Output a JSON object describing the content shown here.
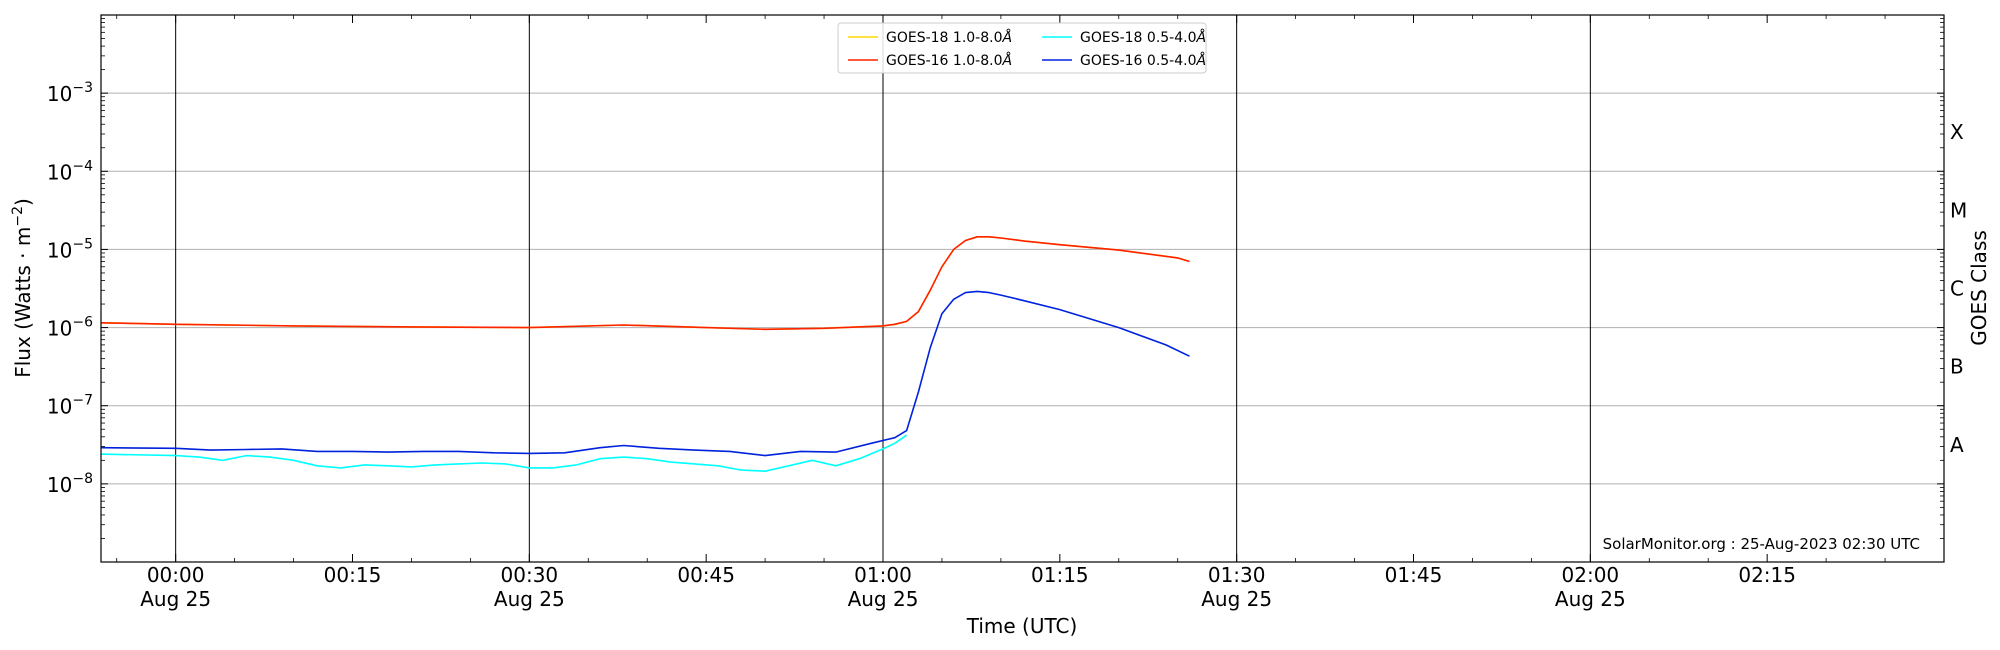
{
  "chart_data": {
    "type": "line",
    "title": "",
    "xlabel": "Time (UTC)",
    "ylabel": "Flux (Watts · m",
    "ylabel_exponent": "−2",
    "ylabel_close": ")",
    "y2label": "GOES Class",
    "credit": "SolarMonitor.org : 25-Aug-2023 02:30 UTC",
    "y_scale": "log",
    "ylim": [
      1e-09,
      0.01
    ],
    "xlim": [
      "2023-08-24T23:53:40",
      "2023-08-25T02:30:00"
    ],
    "grid_y": true,
    "legend_position": "top-center",
    "x_ticks": [
      {
        "time": "2023-08-25T00:00:00",
        "label": "00:00",
        "sublabel": "Aug 25",
        "vline": true
      },
      {
        "time": "2023-08-25T00:15:00",
        "label": "00:15",
        "sublabel": "",
        "vline": false
      },
      {
        "time": "2023-08-25T00:30:00",
        "label": "00:30",
        "sublabel": "Aug 25",
        "vline": true
      },
      {
        "time": "2023-08-25T00:45:00",
        "label": "00:45",
        "sublabel": "",
        "vline": false
      },
      {
        "time": "2023-08-25T01:00:00",
        "label": "01:00",
        "sublabel": "Aug 25",
        "vline": true
      },
      {
        "time": "2023-08-25T01:15:00",
        "label": "01:15",
        "sublabel": "",
        "vline": false
      },
      {
        "time": "2023-08-25T01:30:00",
        "label": "01:30",
        "sublabel": "Aug 25",
        "vline": true
      },
      {
        "time": "2023-08-25T01:45:00",
        "label": "01:45",
        "sublabel": "",
        "vline": false
      },
      {
        "time": "2023-08-25T02:00:00",
        "label": "02:00",
        "sublabel": "Aug 25",
        "vline": true
      },
      {
        "time": "2023-08-25T02:15:00",
        "label": "02:15",
        "sublabel": "",
        "vline": false
      }
    ],
    "y_ticks": [
      {
        "value": 1e-08,
        "base": "10",
        "exponent": "−8"
      },
      {
        "value": 1e-07,
        "base": "10",
        "exponent": "−7"
      },
      {
        "value": 1e-06,
        "base": "10",
        "exponent": "−6"
      },
      {
        "value": 1e-05,
        "base": "10",
        "exponent": "−5"
      },
      {
        "value": 0.0001,
        "base": "10",
        "exponent": "−4"
      },
      {
        "value": 0.001,
        "base": "10",
        "exponent": "−3"
      }
    ],
    "goes_classes": [
      {
        "label": "A",
        "value": 3.16e-08
      },
      {
        "label": "B",
        "value": 3.16e-07
      },
      {
        "label": "C",
        "value": 3.16e-06
      },
      {
        "label": "M",
        "value": 3.16e-05
      },
      {
        "label": "X",
        "value": 0.000316
      }
    ],
    "series": [
      {
        "name": "GOES-18 1.0-8.0",
        "name_suffix": "Å",
        "color": "#ffd700",
        "x": [
          "2023-08-24T23:53:40",
          "2023-08-25T00:00:00",
          "2023-08-25T00:10:00",
          "2023-08-25T00:20:00",
          "2023-08-25T00:30:00",
          "2023-08-25T00:38:00",
          "2023-08-25T00:45:00",
          "2023-08-25T00:50:00",
          "2023-08-25T00:55:00",
          "2023-08-25T01:00:00",
          "2023-08-25T01:01:00",
          "2023-08-25T01:02:00",
          "2023-08-25T01:03:00",
          "2023-08-25T01:04:00",
          "2023-08-25T01:05:00",
          "2023-08-25T01:06:00",
          "2023-08-25T01:07:00",
          "2023-08-25T01:08:00",
          "2023-08-25T01:09:00",
          "2023-08-25T01:10:00",
          "2023-08-25T01:12:00",
          "2023-08-25T01:15:00",
          "2023-08-25T01:20:00",
          "2023-08-25T01:25:00",
          "2023-08-25T01:26:00"
        ],
        "y": [
          1.15e-06,
          1.1e-06,
          1.05e-06,
          1.02e-06,
          1e-06,
          1.08e-06,
          1e-06,
          9.5e-07,
          9.8e-07,
          1.05e-06,
          1.1e-06,
          1.2e-06,
          1.6e-06,
          3e-06,
          6e-06,
          1e-05,
          1.3e-05,
          1.45e-05,
          1.45e-05,
          1.4e-05,
          1.28e-05,
          1.15e-05,
          9.8e-06,
          7.8e-06,
          7e-06
        ]
      },
      {
        "name": "GOES-16 1.0-8.0",
        "name_suffix": "Å",
        "color": "#ff2200",
        "x": [
          "2023-08-24T23:53:40",
          "2023-08-25T00:00:00",
          "2023-08-25T00:10:00",
          "2023-08-25T00:20:00",
          "2023-08-25T00:30:00",
          "2023-08-25T00:38:00",
          "2023-08-25T00:45:00",
          "2023-08-25T00:50:00",
          "2023-08-25T00:55:00",
          "2023-08-25T01:00:00",
          "2023-08-25T01:01:00",
          "2023-08-25T01:02:00",
          "2023-08-25T01:03:00",
          "2023-08-25T01:04:00",
          "2023-08-25T01:05:00",
          "2023-08-25T01:06:00",
          "2023-08-25T01:07:00",
          "2023-08-25T01:08:00",
          "2023-08-25T01:09:00",
          "2023-08-25T01:10:00",
          "2023-08-25T01:12:00",
          "2023-08-25T01:15:00",
          "2023-08-25T01:20:00",
          "2023-08-25T01:25:00",
          "2023-08-25T01:26:00"
        ],
        "y": [
          1.15e-06,
          1.1e-06,
          1.05e-06,
          1.02e-06,
          1e-06,
          1.08e-06,
          1e-06,
          9.5e-07,
          9.8e-07,
          1.05e-06,
          1.1e-06,
          1.2e-06,
          1.6e-06,
          3e-06,
          6e-06,
          1e-05,
          1.3e-05,
          1.45e-05,
          1.45e-05,
          1.4e-05,
          1.28e-05,
          1.15e-05,
          9.8e-06,
          7.8e-06,
          7e-06
        ]
      },
      {
        "name": "GOES-18 0.5-4.0",
        "name_suffix": "Å",
        "color": "#00ffff",
        "x": [
          "2023-08-24T23:53:40",
          "2023-08-25T00:00:00",
          "2023-08-25T00:02:00",
          "2023-08-25T00:04:00",
          "2023-08-25T00:06:00",
          "2023-08-25T00:08:00",
          "2023-08-25T00:10:00",
          "2023-08-25T00:12:00",
          "2023-08-25T00:14:00",
          "2023-08-25T00:16:00",
          "2023-08-25T00:18:00",
          "2023-08-25T00:20:00",
          "2023-08-25T00:22:00",
          "2023-08-25T00:24:00",
          "2023-08-25T00:26:00",
          "2023-08-25T00:28:00",
          "2023-08-25T00:30:00",
          "2023-08-25T00:32:00",
          "2023-08-25T00:34:00",
          "2023-08-25T00:36:00",
          "2023-08-25T00:38:00",
          "2023-08-25T00:40:00",
          "2023-08-25T00:42:00",
          "2023-08-25T00:44:00",
          "2023-08-25T00:46:00",
          "2023-08-25T00:48:00",
          "2023-08-25T00:50:00",
          "2023-08-25T00:52:00",
          "2023-08-25T00:54:00",
          "2023-08-25T00:56:00",
          "2023-08-25T00:58:00",
          "2023-08-25T01:00:00",
          "2023-08-25T01:01:00",
          "2023-08-25T01:02:00"
        ],
        "y": [
          2.4e-08,
          2.3e-08,
          2.2e-08,
          2e-08,
          2.3e-08,
          2.2e-08,
          2e-08,
          1.7e-08,
          1.6e-08,
          1.75e-08,
          1.7e-08,
          1.65e-08,
          1.75e-08,
          1.8e-08,
          1.85e-08,
          1.8e-08,
          1.6e-08,
          1.6e-08,
          1.75e-08,
          2.1e-08,
          2.2e-08,
          2.1e-08,
          1.9e-08,
          1.8e-08,
          1.7e-08,
          1.5e-08,
          1.45e-08,
          1.7e-08,
          2e-08,
          1.7e-08,
          2.1e-08,
          2.8e-08,
          3.3e-08,
          4.2e-08
        ]
      },
      {
        "name": "GOES-16 0.5-4.0",
        "name_suffix": "Å",
        "color": "#0022dd",
        "x": [
          "2023-08-24T23:53:40",
          "2023-08-25T00:00:00",
          "2023-08-25T00:03:00",
          "2023-08-25T00:06:00",
          "2023-08-25T00:09:00",
          "2023-08-25T00:12:00",
          "2023-08-25T00:15:00",
          "2023-08-25T00:18:00",
          "2023-08-25T00:21:00",
          "2023-08-25T00:24:00",
          "2023-08-25T00:27:00",
          "2023-08-25T00:30:00",
          "2023-08-25T00:33:00",
          "2023-08-25T00:36:00",
          "2023-08-25T00:38:00",
          "2023-08-25T00:41:00",
          "2023-08-25T00:44:00",
          "2023-08-25T00:47:00",
          "2023-08-25T00:50:00",
          "2023-08-25T00:53:00",
          "2023-08-25T00:56:00",
          "2023-08-25T00:59:00",
          "2023-08-25T01:01:00",
          "2023-08-25T01:02:00",
          "2023-08-25T01:03:00",
          "2023-08-25T01:04:00",
          "2023-08-25T01:05:00",
          "2023-08-25T01:06:00",
          "2023-08-25T01:07:00",
          "2023-08-25T01:08:00",
          "2023-08-25T01:09:00",
          "2023-08-25T01:10:00",
          "2023-08-25T01:12:00",
          "2023-08-25T01:15:00",
          "2023-08-25T01:20:00",
          "2023-08-25T01:24:00",
          "2023-08-25T01:26:00"
        ],
        "y": [
          2.9e-08,
          2.85e-08,
          2.7e-08,
          2.75e-08,
          2.8e-08,
          2.6e-08,
          2.6e-08,
          2.55e-08,
          2.6e-08,
          2.6e-08,
          2.5e-08,
          2.45e-08,
          2.5e-08,
          2.9e-08,
          3.1e-08,
          2.85e-08,
          2.7e-08,
          2.6e-08,
          2.3e-08,
          2.6e-08,
          2.55e-08,
          3.3e-08,
          3.9e-08,
          4.8e-08,
          1.5e-07,
          5.5e-07,
          1.5e-06,
          2.3e-06,
          2.8e-06,
          2.9e-06,
          2.8e-06,
          2.6e-06,
          2.2e-06,
          1.7e-06,
          1e-06,
          6e-07,
          4.3e-07
        ]
      }
    ]
  }
}
